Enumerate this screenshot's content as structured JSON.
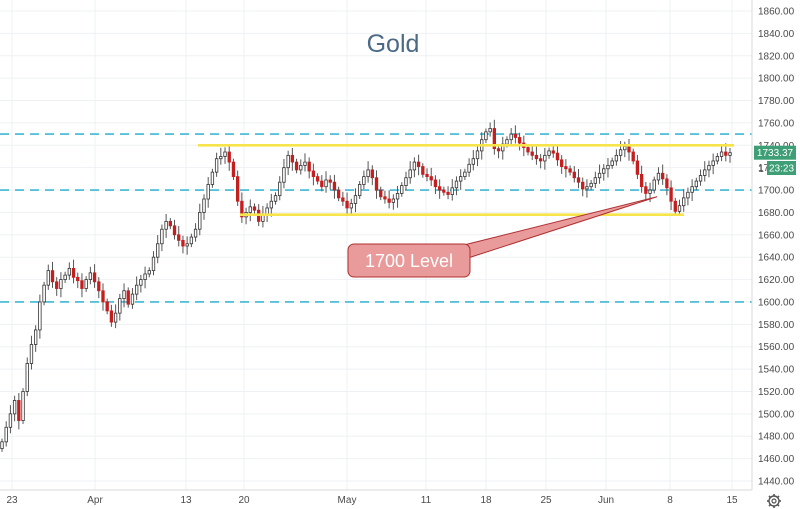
{
  "chart_data": {
    "type": "candlestick",
    "title": "Gold",
    "ylim": [
      1440,
      1870
    ],
    "y_ticks": [
      "1860.00",
      "1840.00",
      "1820.00",
      "1800.00",
      "1780.00",
      "1760.00",
      "1740.00",
      "1720.00",
      "1700.00",
      "1680.00",
      "1660.00",
      "1640.00",
      "1620.00",
      "1600.00",
      "1580.00",
      "1560.00",
      "1540.00",
      "1520.00",
      "1500.00",
      "1480.00",
      "1460.00",
      "1440.00"
    ],
    "x_ticks": [
      "23",
      "Apr",
      "13",
      "20",
      "May",
      "11",
      "18",
      "25",
      "Jun",
      "8",
      "15"
    ],
    "grid": true,
    "candle_colors": {
      "up": "#333333",
      "down": "#c41f1f",
      "wick": "#555555"
    },
    "closes": [
      1475,
      1488,
      1500,
      1512,
      1494,
      1520,
      1545,
      1562,
      1575,
      1600,
      1615,
      1628,
      1618,
      1612,
      1620,
      1624,
      1630,
      1622,
      1619,
      1612,
      1620,
      1626,
      1618,
      1610,
      1600,
      1592,
      1582,
      1590,
      1603,
      1610,
      1598,
      1607,
      1615,
      1620,
      1625,
      1628,
      1640,
      1652,
      1665,
      1672,
      1668,
      1660,
      1655,
      1650,
      1652,
      1658,
      1665,
      1680,
      1692,
      1705,
      1716,
      1728,
      1730,
      1734,
      1725,
      1712,
      1690,
      1676,
      1680,
      1685,
      1682,
      1672,
      1678,
      1684,
      1690,
      1695,
      1707,
      1720,
      1731,
      1725,
      1718,
      1722,
      1725,
      1717,
      1712,
      1708,
      1703,
      1709,
      1707,
      1700,
      1693,
      1690,
      1684,
      1688,
      1695,
      1705,
      1712,
      1718,
      1711,
      1700,
      1694,
      1692,
      1689,
      1692,
      1697,
      1704,
      1711,
      1718,
      1725,
      1721,
      1714,
      1712,
      1709,
      1703,
      1700,
      1698,
      1696,
      1702,
      1708,
      1712,
      1716,
      1723,
      1728,
      1735,
      1745,
      1752,
      1755,
      1737,
      1735,
      1741,
      1745,
      1750,
      1747,
      1742,
      1738,
      1734,
      1731,
      1728,
      1726,
      1731,
      1735,
      1733,
      1727,
      1721,
      1719,
      1716,
      1711,
      1707,
      1701,
      1703,
      1706,
      1711,
      1715,
      1719,
      1722,
      1726,
      1731,
      1736,
      1739,
      1734,
      1726,
      1714,
      1703,
      1697,
      1700,
      1709,
      1715,
      1710,
      1702,
      1690,
      1681,
      1686,
      1693,
      1698,
      1703,
      1708,
      1713,
      1718,
      1722,
      1726,
      1730,
      1734,
      1731,
      1733.37
    ],
    "support_line": {
      "label": "1700 Level",
      "level": 1700
    },
    "horizontal_levels": [
      1750,
      1700,
      1600
    ],
    "range_lines": [
      1740,
      1678
    ],
    "last_price": "1733.37",
    "countdown": "23:23",
    "hidden_price_prefix": "1"
  },
  "colors": {
    "dashed": "#3fb8d3",
    "yellow": "#f7e34a",
    "annotation_fill": "#e99a9a",
    "annotation_border": "#b03030",
    "price_tag": "#3e9f76"
  },
  "icons": {
    "settings": "gear-icon"
  }
}
